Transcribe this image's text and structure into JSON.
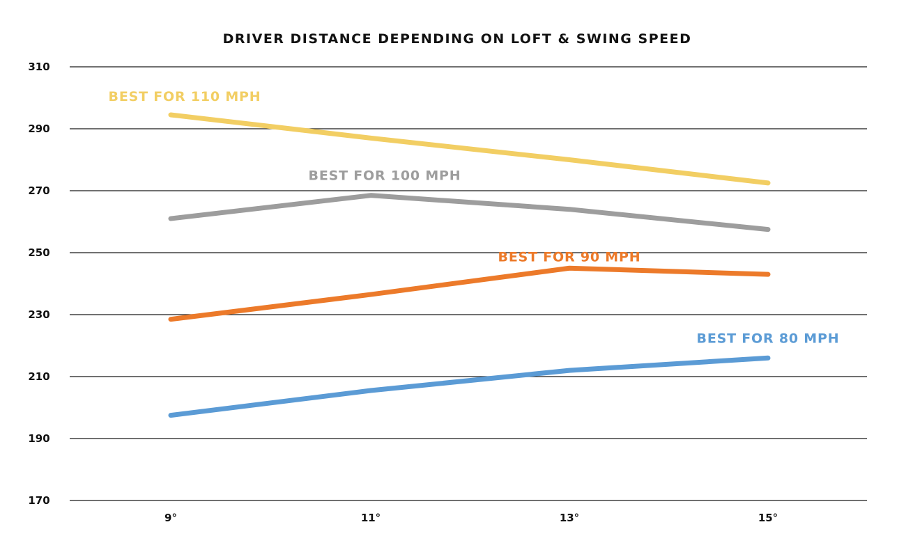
{
  "chart_data": {
    "type": "line",
    "title": "DRIVER DISTANCE DEPENDING ON LOFT & SWING SPEED",
    "xlabel": "",
    "ylabel": "",
    "categories": [
      "9°",
      "11°",
      "13°",
      "15°"
    ],
    "ylim": [
      170,
      310
    ],
    "yticks": [
      170,
      190,
      210,
      230,
      250,
      270,
      290,
      310
    ],
    "grid": true,
    "series": [
      {
        "name": "110 mph",
        "label": "BEST FOR 110 MPH",
        "color": "#F2CE63",
        "values": [
          294.5,
          287,
          280,
          272.5
        ],
        "label_anchor_index": 0
      },
      {
        "name": "100 mph",
        "label": "BEST FOR 100 MPH",
        "color": "#9D9D9D",
        "values": [
          261,
          268.5,
          264,
          257.5
        ],
        "label_anchor_index": 1
      },
      {
        "name": "90 mph",
        "label": "BEST FOR 90 MPH",
        "color": "#EC7A2A",
        "values": [
          228.5,
          236.5,
          245,
          243
        ],
        "label_anchor_index": 2
      },
      {
        "name": "80 mph",
        "label": "BEST FOR 80 MPH",
        "color": "#5B9BD5",
        "values": [
          197.5,
          205.5,
          212,
          216
        ],
        "label_anchor_index": 3
      }
    ]
  }
}
